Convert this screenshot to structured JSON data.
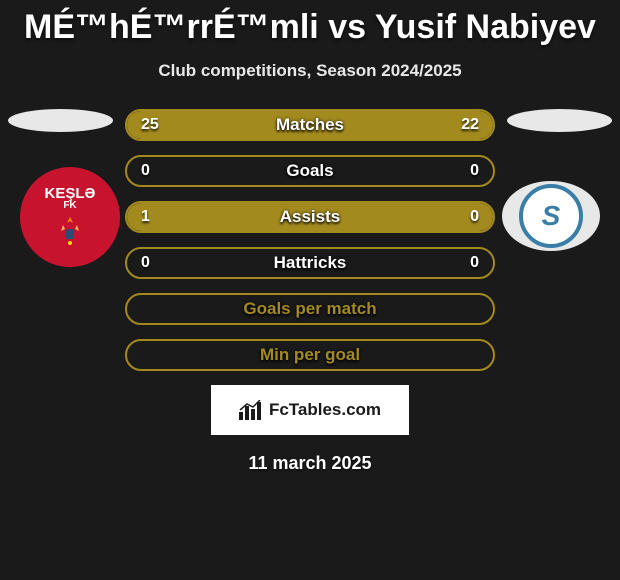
{
  "title": "MÉ™hÉ™rrÉ™mli vs Yusif Nabiyev",
  "subtitle": "Club competitions, Season 2024/2025",
  "date": "11 march 2025",
  "footer_logo_text": "FcTables.com",
  "colors": {
    "background": "#1a1a1a",
    "border": "#a28a1e",
    "fill_left": "#a28a1e",
    "fill_right": "#a28a1e",
    "badge_left_bg": "#c8132f",
    "badge_right_ring": "#3a7ea8",
    "text": "#ffffff"
  },
  "club_left": {
    "name": "KEŞLƏ",
    "sub": "FK"
  },
  "club_right": {
    "initial": "S"
  },
  "stats": [
    {
      "label": "Matches",
      "left_val": "25",
      "right_val": "22",
      "left_pct": 53,
      "right_pct": 47
    },
    {
      "label": "Goals",
      "left_val": "0",
      "right_val": "0",
      "left_pct": 0,
      "right_pct": 0
    },
    {
      "label": "Assists",
      "left_val": "1",
      "right_val": "0",
      "left_pct": 80,
      "right_pct": 20
    },
    {
      "label": "Hattricks",
      "left_val": "0",
      "right_val": "0",
      "left_pct": 0,
      "right_pct": 0
    },
    {
      "label": "Goals per match",
      "left_val": "",
      "right_val": "",
      "left_pct": 100,
      "right_pct": 0,
      "label_color": "#a28a1e",
      "full_border_only": true
    },
    {
      "label": "Min per goal",
      "left_val": "",
      "right_val": "",
      "left_pct": 100,
      "right_pct": 0,
      "label_color": "#a28a1e",
      "full_border_only": true
    }
  ]
}
